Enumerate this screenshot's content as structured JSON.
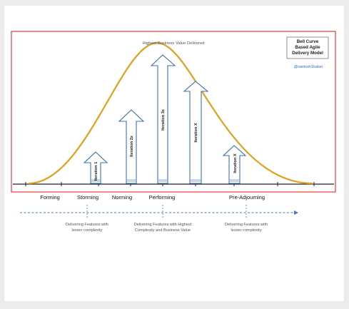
{
  "peak_label": "Highest Business Value Delivered",
  "model_title": [
    "Bell Curve",
    "Based Agile",
    "Delivery Model"
  ],
  "handle": "@santosh1balan",
  "phases": [
    "Forming",
    "Storming",
    "Norming",
    "Performing",
    "Pre-Adjourning"
  ],
  "iterations": [
    "Iteration 1",
    "Iteration 2x",
    "Iteration 3x",
    "Iteration X",
    "Iteration X"
  ],
  "descriptions": [
    [
      "Delivering Features with",
      "lesser complexity"
    ],
    [
      "Delivering Features with Highest",
      "Complexity and Business Value"
    ],
    [
      "Delivering Features with",
      "lesser complexity"
    ]
  ],
  "colors": {
    "frame": "#e23b3b",
    "curve": "#e0a020",
    "arrow": "#3f6faf",
    "timeline": "#4a78b8",
    "axis": "#222222"
  }
}
